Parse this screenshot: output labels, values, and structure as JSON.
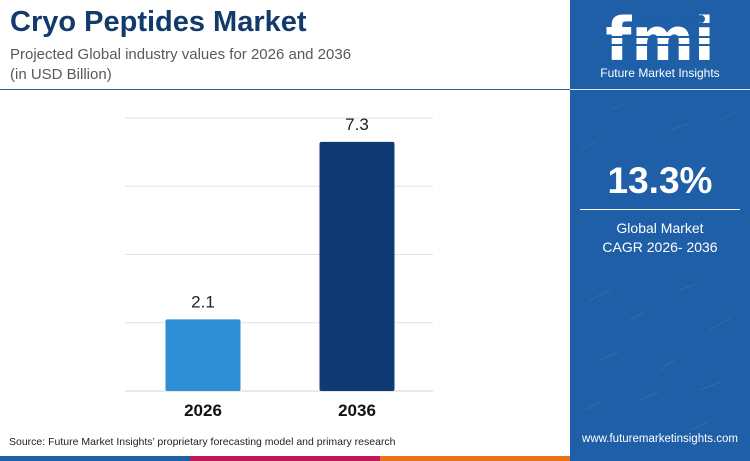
{
  "header": {
    "title": "Cryo Peptides Market",
    "subtitle_line1": "Projected Global industry values for 2026 and 2036",
    "subtitle_line2": "(in USD Billion)"
  },
  "chart_data": {
    "type": "bar",
    "categories": [
      "2026",
      "2036"
    ],
    "values": [
      2.1,
      7.3
    ],
    "data_labels": [
      "2.1",
      "7.3"
    ],
    "bar_colors": [
      "#2e8fd6",
      "#0f3a73"
    ],
    "ylim": [
      0,
      8
    ],
    "grid": true,
    "title": "",
    "xlabel": "",
    "ylabel": ""
  },
  "sidebar": {
    "logo_text": "fmi",
    "logo_subtitle": "Future Market Insights",
    "cagr_value": "13.3%",
    "cagr_label_line1": "Global Market",
    "cagr_label_line2": "CAGR 2026- 2036",
    "website": "www.futuremarketinsights.com",
    "background_color": "#1f5fa8"
  },
  "footer": {
    "source": "Source: Future Market Insights’ proprietary forecasting model and primary research",
    "stripe_colors": [
      "#1f5fa8",
      "#c2185b",
      "#e8731a"
    ]
  }
}
